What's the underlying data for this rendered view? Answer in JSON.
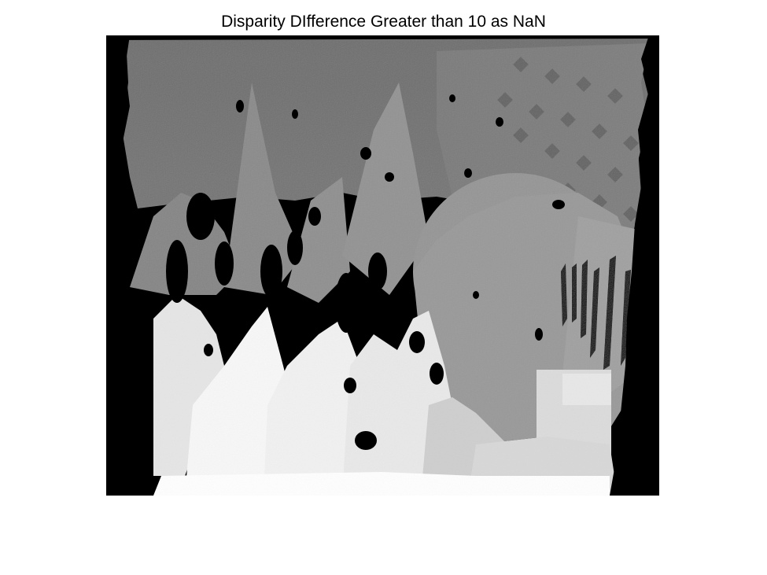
{
  "figure": {
    "title": "Disparity DIfference Greater than 10 as NaN"
  },
  "image": {
    "description_key": "disparity-map",
    "colormap": "gray",
    "nan_color": "#000000"
  }
}
